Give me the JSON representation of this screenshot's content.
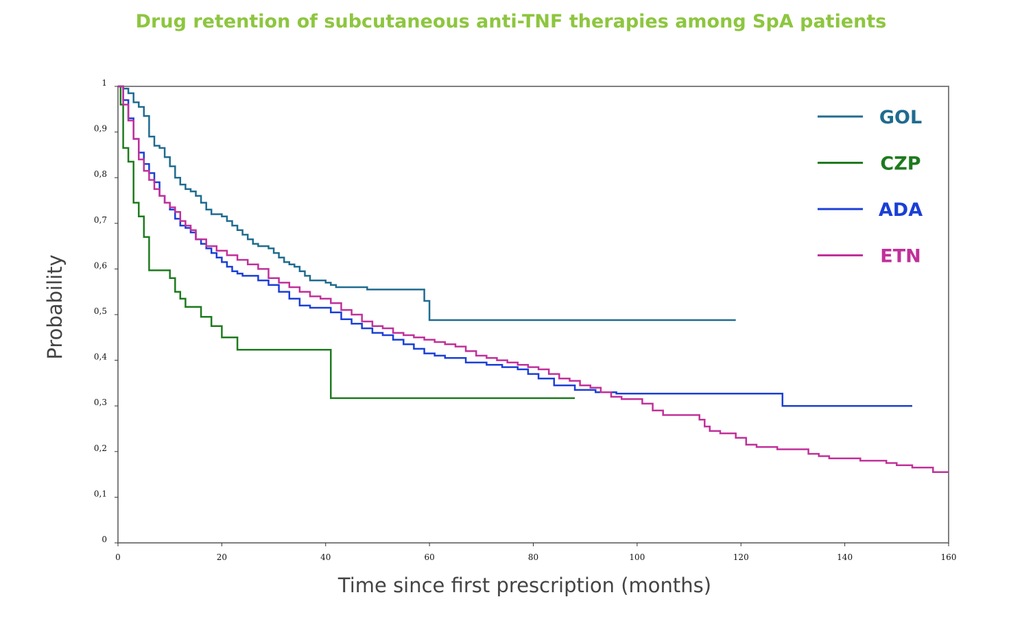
{
  "chart_data": {
    "type": "line",
    "title": "Drug retention of subcutaneous anti-TNF therapies among SpA patients",
    "xlabel": "Time since first prescription (months)",
    "ylabel": "Probability",
    "xlim": [
      0,
      160
    ],
    "ylim": [
      0,
      1
    ],
    "x_ticks": [
      "0",
      "20",
      "40",
      "60",
      "80",
      "100",
      "120",
      "140",
      "160"
    ],
    "y_ticks": [
      "0",
      "0,1",
      "0,2",
      "0,3",
      "0,4",
      "0,5",
      "0,6",
      "0,7",
      "0,8",
      "0,9",
      "1"
    ],
    "grid": false,
    "legend_position": "top-right",
    "step": true,
    "series": [
      {
        "name": "GOL",
        "color": "#1f6b8f",
        "x": [
          0,
          1,
          2,
          3,
          4,
          5,
          6,
          7,
          8,
          9,
          10,
          11,
          12,
          13,
          14,
          15,
          16,
          17,
          18,
          20,
          21,
          22,
          23,
          24,
          25,
          26,
          27,
          29,
          30,
          31,
          32,
          33,
          34,
          35,
          36,
          37,
          38,
          39,
          40,
          41,
          42,
          48,
          59,
          60,
          119
        ],
        "y": [
          1.0,
          0.995,
          0.985,
          0.965,
          0.955,
          0.935,
          0.89,
          0.87,
          0.865,
          0.845,
          0.825,
          0.8,
          0.785,
          0.775,
          0.77,
          0.76,
          0.745,
          0.73,
          0.72,
          0.715,
          0.705,
          0.695,
          0.685,
          0.675,
          0.665,
          0.655,
          0.65,
          0.645,
          0.635,
          0.625,
          0.615,
          0.61,
          0.605,
          0.595,
          0.585,
          0.575,
          0.575,
          0.575,
          0.57,
          0.565,
          0.56,
          0.555,
          0.53,
          0.488,
          0.488
        ]
      },
      {
        "name": "CZP",
        "color": "#1e7a1e",
        "x": [
          0,
          0.5,
          1,
          2,
          3,
          4,
          5,
          6,
          10,
          11,
          12,
          13,
          16,
          18,
          20,
          23,
          41,
          88
        ],
        "y": [
          1.0,
          0.96,
          0.865,
          0.835,
          0.745,
          0.715,
          0.67,
          0.597,
          0.58,
          0.55,
          0.535,
          0.517,
          0.495,
          0.475,
          0.45,
          0.423,
          0.317,
          0.317
        ]
      },
      {
        "name": "ADA",
        "color": "#1a3fd6",
        "x": [
          0,
          1,
          2,
          3,
          4,
          5,
          6,
          7,
          8,
          9,
          10,
          11,
          12,
          13,
          14,
          15,
          16,
          17,
          18,
          19,
          20,
          21,
          22,
          23,
          24,
          27,
          29,
          31,
          33,
          35,
          37,
          41,
          43,
          45,
          47,
          49,
          51,
          53,
          55,
          57,
          59,
          61,
          63,
          67,
          71,
          74,
          77,
          79,
          81,
          84,
          88,
          92,
          96,
          128,
          153
        ],
        "y": [
          1.0,
          0.97,
          0.93,
          0.885,
          0.855,
          0.83,
          0.81,
          0.79,
          0.76,
          0.745,
          0.73,
          0.71,
          0.695,
          0.69,
          0.68,
          0.665,
          0.655,
          0.645,
          0.635,
          0.625,
          0.615,
          0.605,
          0.595,
          0.59,
          0.585,
          0.575,
          0.565,
          0.55,
          0.535,
          0.52,
          0.515,
          0.505,
          0.49,
          0.48,
          0.47,
          0.46,
          0.455,
          0.445,
          0.435,
          0.425,
          0.415,
          0.41,
          0.405,
          0.395,
          0.39,
          0.385,
          0.38,
          0.37,
          0.36,
          0.345,
          0.335,
          0.33,
          0.327,
          0.3,
          0.3
        ]
      },
      {
        "name": "ETN",
        "color": "#c0309a",
        "x": [
          0,
          1,
          2,
          3,
          4,
          5,
          6,
          7,
          8,
          9,
          10,
          11,
          12,
          13,
          14,
          15,
          17,
          19,
          21,
          23,
          25,
          27,
          29,
          31,
          33,
          35,
          37,
          39,
          41,
          43,
          45,
          47,
          49,
          51,
          53,
          55,
          57,
          59,
          61,
          63,
          65,
          67,
          69,
          71,
          73,
          75,
          77,
          79,
          81,
          83,
          85,
          87,
          89,
          91,
          93,
          95,
          97,
          101,
          103,
          105,
          108,
          112,
          113,
          114,
          116,
          119,
          121,
          123,
          127,
          133,
          135,
          137,
          143,
          148,
          150,
          153,
          157,
          160
        ],
        "y": [
          1.0,
          0.96,
          0.925,
          0.885,
          0.84,
          0.815,
          0.795,
          0.775,
          0.76,
          0.745,
          0.735,
          0.725,
          0.705,
          0.695,
          0.685,
          0.665,
          0.65,
          0.64,
          0.63,
          0.62,
          0.61,
          0.6,
          0.58,
          0.57,
          0.56,
          0.55,
          0.54,
          0.535,
          0.525,
          0.51,
          0.5,
          0.485,
          0.475,
          0.47,
          0.46,
          0.455,
          0.45,
          0.445,
          0.44,
          0.435,
          0.43,
          0.42,
          0.41,
          0.405,
          0.4,
          0.395,
          0.39,
          0.385,
          0.38,
          0.37,
          0.36,
          0.355,
          0.345,
          0.34,
          0.33,
          0.32,
          0.315,
          0.305,
          0.29,
          0.28,
          0.28,
          0.27,
          0.255,
          0.245,
          0.24,
          0.23,
          0.215,
          0.21,
          0.205,
          0.195,
          0.19,
          0.185,
          0.18,
          0.175,
          0.17,
          0.165,
          0.155,
          0.155
        ]
      }
    ]
  }
}
